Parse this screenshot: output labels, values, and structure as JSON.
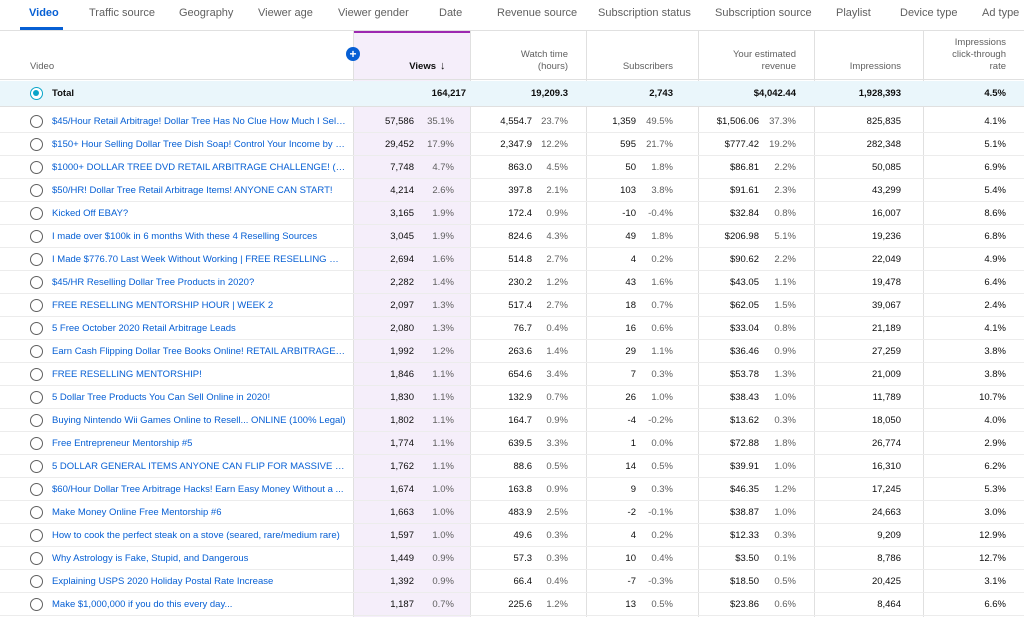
{
  "tabs": [
    "Video",
    "Traffic source",
    "Geography",
    "Viewer age",
    "Viewer gender",
    "Date",
    "Revenue source",
    "Subscription status",
    "Subscription source",
    "Playlist",
    "Device type",
    "Ad type"
  ],
  "columns": {
    "video": "Video",
    "views": "Views",
    "views_sort_icon": "arrow-down-icon",
    "watch_time_1": "Watch time",
    "watch_time_2": "(hours)",
    "subscribers": "Subscribers",
    "revenue_1": "Your estimated",
    "revenue_2": "revenue",
    "impressions": "Impressions",
    "ctr_1": "Impressions",
    "ctr_2": "click-through",
    "ctr_3": "rate"
  },
  "add_button": "+",
  "colors": {
    "accent": "#065fd4",
    "views_highlight": "#9c27b0",
    "total_radio": "#0aa5c9"
  },
  "total": {
    "label": "Total",
    "views": "164,217",
    "watch_time": "19,209.3",
    "subscribers": "2,743",
    "revenue": "$4,042.44",
    "impressions": "1,928,393",
    "ctr": "4.5%"
  },
  "rows": [
    {
      "title": "$45/Hour Retail Arbitrage! Dollar Tree Has No Clue How Much I Sell...",
      "views": "57,586",
      "views_pct": "35.1%",
      "watch": "4,554.7",
      "watch_pct": "23.7%",
      "subs": "1,359",
      "subs_pct": "49.5%",
      "rev": "$1,506.06",
      "rev_pct": "37.3%",
      "impr": "825,835",
      "ctr": "4.1%"
    },
    {
      "title": "$150+ Hour Selling Dollar Tree Dish Soap! Control Your Income by S...",
      "views": "29,452",
      "views_pct": "17.9%",
      "watch": "2,347.9",
      "watch_pct": "12.2%",
      "subs": "595",
      "subs_pct": "21.7%",
      "rev": "$777.42",
      "rev_pct": "19.2%",
      "impr": "282,348",
      "ctr": "5.1%"
    },
    {
      "title": "$1000+ DOLLAR TREE DVD RETAIL ARBITRAGE CHALLENGE! (100...",
      "views": "7,748",
      "views_pct": "4.7%",
      "watch": "863.0",
      "watch_pct": "4.5%",
      "subs": "50",
      "subs_pct": "1.8%",
      "rev": "$86.81",
      "rev_pct": "2.2%",
      "impr": "50,085",
      "ctr": "6.9%"
    },
    {
      "title": "$50/HR! Dollar Tree Retail Arbitrage Items! ANYONE CAN START!",
      "views": "4,214",
      "views_pct": "2.6%",
      "watch": "397.8",
      "watch_pct": "2.1%",
      "subs": "103",
      "subs_pct": "3.8%",
      "rev": "$91.61",
      "rev_pct": "2.3%",
      "impr": "43,299",
      "ctr": "5.4%"
    },
    {
      "title": "Kicked Off EBAY?",
      "views": "3,165",
      "views_pct": "1.9%",
      "watch": "172.4",
      "watch_pct": "0.9%",
      "subs": "-10",
      "subs_pct": "-0.4%",
      "rev": "$32.84",
      "rev_pct": "0.8%",
      "impr": "16,007",
      "ctr": "8.6%"
    },
    {
      "title": "I made over $100k in 6 months With these 4 Reselling Sources",
      "views": "3,045",
      "views_pct": "1.9%",
      "watch": "824.6",
      "watch_pct": "4.3%",
      "subs": "49",
      "subs_pct": "1.8%",
      "rev": "$206.98",
      "rev_pct": "5.1%",
      "impr": "19,236",
      "ctr": "6.8%"
    },
    {
      "title": "I Made $776.70 Last Week Without Working | FREE RESELLING ME...",
      "views": "2,694",
      "views_pct": "1.6%",
      "watch": "514.8",
      "watch_pct": "2.7%",
      "subs": "4",
      "subs_pct": "0.2%",
      "rev": "$90.62",
      "rev_pct": "2.2%",
      "impr": "22,049",
      "ctr": "4.9%"
    },
    {
      "title": "$45/HR Reselling Dollar Tree Products in 2020?",
      "views": "2,282",
      "views_pct": "1.4%",
      "watch": "230.2",
      "watch_pct": "1.2%",
      "subs": "43",
      "subs_pct": "1.6%",
      "rev": "$43.05",
      "rev_pct": "1.1%",
      "impr": "19,478",
      "ctr": "6.4%"
    },
    {
      "title": "FREE RESELLING MENTORSHIP HOUR | WEEK 2",
      "views": "2,097",
      "views_pct": "1.3%",
      "watch": "517.4",
      "watch_pct": "2.7%",
      "subs": "18",
      "subs_pct": "0.7%",
      "rev": "$62.05",
      "rev_pct": "1.5%",
      "impr": "39,067",
      "ctr": "2.4%"
    },
    {
      "title": "5 Free October 2020 Retail Arbitrage Leads",
      "views": "2,080",
      "views_pct": "1.3%",
      "watch": "76.7",
      "watch_pct": "0.4%",
      "subs": "16",
      "subs_pct": "0.6%",
      "rev": "$33.04",
      "rev_pct": "0.8%",
      "impr": "21,189",
      "ctr": "4.1%"
    },
    {
      "title": "Earn Cash Flipping Dollar Tree Books Online! RETAIL ARBITRAGE V...",
      "views": "1,992",
      "views_pct": "1.2%",
      "watch": "263.6",
      "watch_pct": "1.4%",
      "subs": "29",
      "subs_pct": "1.1%",
      "rev": "$36.46",
      "rev_pct": "0.9%",
      "impr": "27,259",
      "ctr": "3.8%"
    },
    {
      "title": "FREE RESELLING MENTORSHIP!",
      "views": "1,846",
      "views_pct": "1.1%",
      "watch": "654.6",
      "watch_pct": "3.4%",
      "subs": "7",
      "subs_pct": "0.3%",
      "rev": "$53.78",
      "rev_pct": "1.3%",
      "impr": "21,009",
      "ctr": "3.8%"
    },
    {
      "title": "5 Dollar Tree Products You Can Sell Online in 2020!",
      "views": "1,830",
      "views_pct": "1.1%",
      "watch": "132.9",
      "watch_pct": "0.7%",
      "subs": "26",
      "subs_pct": "1.0%",
      "rev": "$38.43",
      "rev_pct": "1.0%",
      "impr": "11,789",
      "ctr": "10.7%"
    },
    {
      "title": "Buying Nintendo Wii Games Online to Resell... ONLINE (100% Legal)",
      "views": "1,802",
      "views_pct": "1.1%",
      "watch": "164.7",
      "watch_pct": "0.9%",
      "subs": "-4",
      "subs_pct": "-0.2%",
      "rev": "$13.62",
      "rev_pct": "0.3%",
      "impr": "18,050",
      "ctr": "4.0%"
    },
    {
      "title": "Free Entrepreneur Mentorship #5",
      "views": "1,774",
      "views_pct": "1.1%",
      "watch": "639.5",
      "watch_pct": "3.3%",
      "subs": "1",
      "subs_pct": "0.0%",
      "rev": "$72.88",
      "rev_pct": "1.8%",
      "impr": "26,774",
      "ctr": "2.9%"
    },
    {
      "title": "5 DOLLAR GENERAL ITEMS ANYONE CAN FLIP FOR MASSIVE PRO...",
      "views": "1,762",
      "views_pct": "1.1%",
      "watch": "88.6",
      "watch_pct": "0.5%",
      "subs": "14",
      "subs_pct": "0.5%",
      "rev": "$39.91",
      "rev_pct": "1.0%",
      "impr": "16,310",
      "ctr": "6.2%"
    },
    {
      "title": "$60/Hour Dollar Tree Arbitrage Hacks! Earn Easy Money Without a ...",
      "views": "1,674",
      "views_pct": "1.0%",
      "watch": "163.8",
      "watch_pct": "0.9%",
      "subs": "9",
      "subs_pct": "0.3%",
      "rev": "$46.35",
      "rev_pct": "1.2%",
      "impr": "17,245",
      "ctr": "5.3%"
    },
    {
      "title": "Make Money Online Free Mentorship #6",
      "views": "1,663",
      "views_pct": "1.0%",
      "watch": "483.9",
      "watch_pct": "2.5%",
      "subs": "-2",
      "subs_pct": "-0.1%",
      "rev": "$38.87",
      "rev_pct": "1.0%",
      "impr": "24,663",
      "ctr": "3.0%"
    },
    {
      "title": "How to cook the perfect steak on a stove (seared, rare/medium rare)",
      "views": "1,597",
      "views_pct": "1.0%",
      "watch": "49.6",
      "watch_pct": "0.3%",
      "subs": "4",
      "subs_pct": "0.2%",
      "rev": "$12.33",
      "rev_pct": "0.3%",
      "impr": "9,209",
      "ctr": "12.9%"
    },
    {
      "title": "Why Astrology is Fake, Stupid, and Dangerous",
      "views": "1,449",
      "views_pct": "0.9%",
      "watch": "57.3",
      "watch_pct": "0.3%",
      "subs": "10",
      "subs_pct": "0.4%",
      "rev": "$3.50",
      "rev_pct": "0.1%",
      "impr": "8,786",
      "ctr": "12.7%"
    },
    {
      "title": "Explaining USPS 2020 Holiday Postal Rate Increase",
      "views": "1,392",
      "views_pct": "0.9%",
      "watch": "66.4",
      "watch_pct": "0.4%",
      "subs": "-7",
      "subs_pct": "-0.3%",
      "rev": "$18.50",
      "rev_pct": "0.5%",
      "impr": "20,425",
      "ctr": "3.1%"
    },
    {
      "title": "Make $1,000,000 if you do this every day...",
      "views": "1,187",
      "views_pct": "0.7%",
      "watch": "225.6",
      "watch_pct": "1.2%",
      "subs": "13",
      "subs_pct": "0.5%",
      "rev": "$23.86",
      "rev_pct": "0.6%",
      "impr": "8,464",
      "ctr": "6.6%"
    }
  ]
}
